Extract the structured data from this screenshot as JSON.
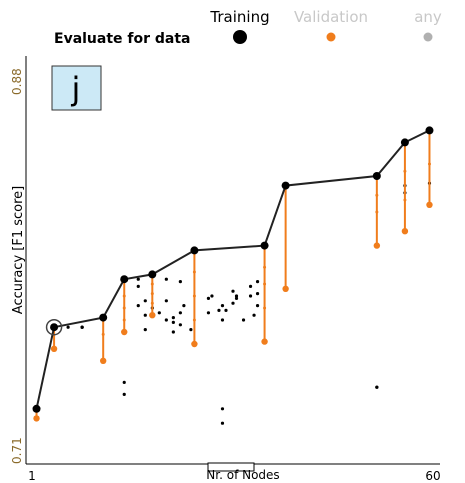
{
  "header": {
    "evaluate_label": "Evaluate for data",
    "legend": [
      {
        "label": "Training",
        "color": "#000000",
        "active": true
      },
      {
        "label": "Validation",
        "color": "#f07d1c",
        "active": true
      },
      {
        "label": "any",
        "color": "#b0b0b0",
        "active": false
      }
    ]
  },
  "panel_letter": "j",
  "chart_data": {
    "type": "scatter",
    "xlabel": "Nr. of Nodes",
    "ylabel": "Accuracy [F1 score]",
    "xlim": [
      1,
      60
    ],
    "ylim": [
      0.71,
      0.88
    ],
    "x_ticks": [
      "1",
      "60"
    ],
    "y_ticks": [
      "0.71",
      "0.88"
    ],
    "colors": {
      "training": "#000000",
      "validation": "#f07d1c",
      "frontier": "#222222",
      "stem": "#f07d1c"
    },
    "training_frontier": {
      "x": [
        2.5,
        5,
        12,
        15,
        19,
        25,
        35,
        38,
        51,
        55,
        58.5
      ],
      "y": [
        0.733,
        0.767,
        0.771,
        0.787,
        0.789,
        0.799,
        0.801,
        0.826,
        0.83,
        0.844,
        0.849
      ]
    },
    "validation_frontier": {
      "x": [
        2.5,
        5,
        12,
        15,
        19,
        25,
        35,
        38,
        51,
        55,
        58.5
      ],
      "y": [
        0.729,
        0.758,
        0.753,
        0.765,
        0.772,
        0.76,
        0.761,
        0.783,
        0.801,
        0.807,
        0.818
      ]
    },
    "stem_midpoints": {
      "x": [
        12,
        15,
        15,
        15,
        19,
        19,
        19,
        25,
        25,
        25,
        35,
        35,
        35,
        51,
        51,
        55,
        55,
        58.5
      ],
      "y": [
        0.764,
        0.77,
        0.775,
        0.78,
        0.777,
        0.781,
        0.785,
        0.77,
        0.78,
        0.79,
        0.775,
        0.785,
        0.792,
        0.815,
        0.822,
        0.82,
        0.832,
        0.835
      ]
    },
    "other_models": {
      "x": [
        7,
        9,
        9,
        9,
        15,
        15,
        17,
        17,
        17,
        18,
        18,
        18,
        19,
        20,
        21,
        21,
        21,
        22,
        22,
        22,
        23,
        23,
        23,
        23.5,
        24.5,
        27,
        27,
        27.5,
        28.5,
        29,
        29,
        29,
        29,
        29.5,
        30.5,
        30.5,
        31,
        31,
        32,
        33,
        33,
        33.5,
        34,
        34,
        34,
        55,
        55,
        51,
        51,
        58.5
      ],
      "y": [
        0.767,
        0.767,
        0.767,
        0.767,
        0.744,
        0.739,
        0.787,
        0.784,
        0.776,
        0.778,
        0.772,
        0.766,
        0.775,
        0.773,
        0.787,
        0.778,
        0.77,
        0.771,
        0.765,
        0.769,
        0.773,
        0.768,
        0.786,
        0.776,
        0.766,
        0.773,
        0.779,
        0.78,
        0.774,
        0.733,
        0.727,
        0.776,
        0.77,
        0.774,
        0.777,
        0.782,
        0.779,
        0.78,
        0.77,
        0.78,
        0.784,
        0.772,
        0.776,
        0.781,
        0.786,
        0.823,
        0.826,
        0.742,
        0.742,
        0.827
      ]
    }
  }
}
